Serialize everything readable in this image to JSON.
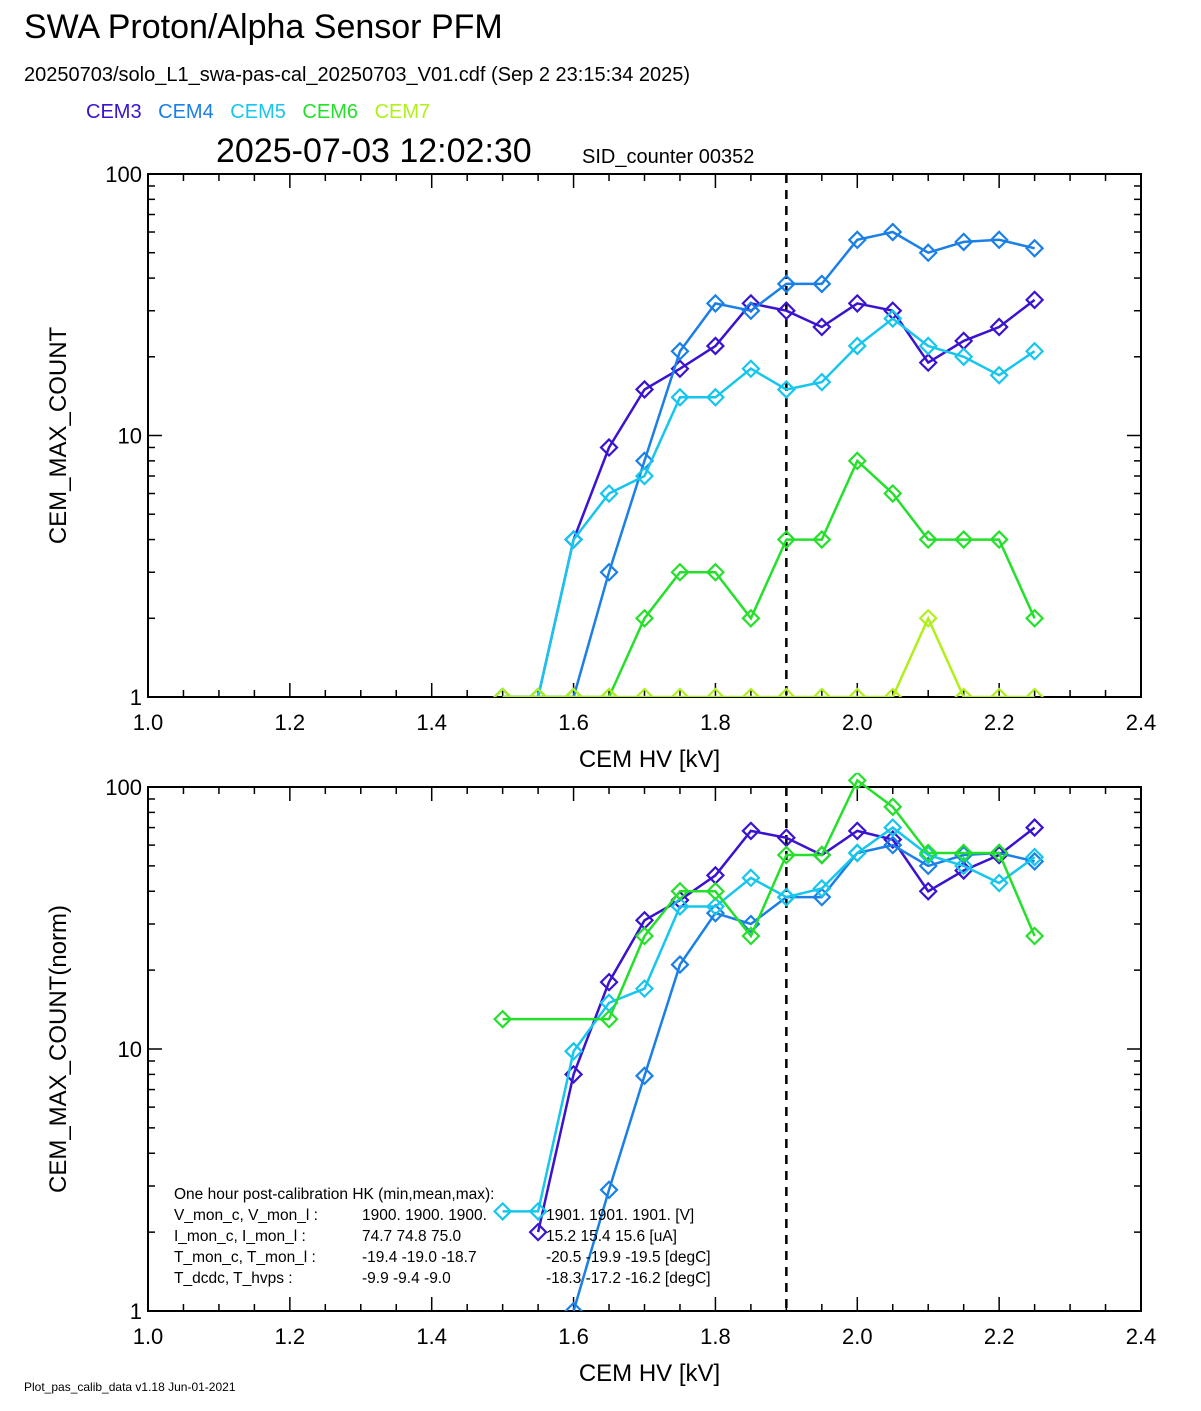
{
  "header": {
    "title": "SWA Proton/Alpha Sensor PFM",
    "subtitle": "20250703/solo_L1_swa-pas-cal_20250703_V01.cdf  (Sep  2 23:15:34 2025)",
    "timestamp": "2025-07-03 12:02:30",
    "sid_counter": "SID_counter 00352"
  },
  "legend": [
    {
      "name": "CEM3",
      "color": "#3a12cf"
    },
    {
      "name": "CEM4",
      "color": "#1a7fe6"
    },
    {
      "name": "CEM5",
      "color": "#17c6ec"
    },
    {
      "name": "CEM6",
      "color": "#25e02a"
    },
    {
      "name": "CEM7",
      "color": "#b0f01a"
    }
  ],
  "footer": "Plot_pas_calib_data v1.18 Jun-01-2021",
  "hk": {
    "title": "One hour post-calibration HK (min,mean,max):",
    "rows": [
      {
        "label": "V_mon_c, V_mon_l :",
        "v1": "1900.  1900.  1900.",
        "v2": "1901.  1901.  1901. [V]"
      },
      {
        "label": "I_mon_c,  I_mon_l :",
        "v1": "74.7   74.8   75.0",
        "v2": "15.2   15.4   15.6  [uA]"
      },
      {
        "label": "T_mon_c, T_mon_l :",
        "v1": "-19.4  -19.0  -18.7",
        "v2": "-20.5  -19.9  -19.5  [degC]"
      },
      {
        "label": "T_dcdc,    T_hvps :",
        "v1": "-9.9   -9.4   -9.0",
        "v2": "-18.3  -17.2  -16.2  [degC]"
      }
    ]
  },
  "chart_data": [
    {
      "type": "line",
      "xlabel": "CEM HV [kV]",
      "ylabel": "CEM_MAX_COUNT",
      "xlim": [
        1.0,
        2.4
      ],
      "ylim": [
        1,
        100
      ],
      "yscale": "log",
      "xticks": [
        "1.0",
        "1.2",
        "1.4",
        "1.6",
        "1.8",
        "2.0",
        "2.2",
        "2.4"
      ],
      "yticks": [
        "1",
        "10",
        "100"
      ],
      "vline": 1.9,
      "series": [
        {
          "name": "CEM3",
          "color": "#3a12cf",
          "x": [
            1.5,
            1.55,
            1.6,
            1.65,
            1.7,
            1.75,
            1.8,
            1.85,
            1.9,
            1.95,
            2.0,
            2.05,
            2.1,
            2.15,
            2.2,
            2.25
          ],
          "y": [
            1,
            1,
            4,
            9,
            15,
            18,
            22,
            32,
            30,
            26,
            32,
            30,
            19,
            23,
            26,
            33
          ]
        },
        {
          "name": "CEM4",
          "color": "#1a7fe6",
          "x": [
            1.5,
            1.55,
            1.6,
            1.65,
            1.7,
            1.75,
            1.8,
            1.85,
            1.9,
            1.95,
            2.0,
            2.05,
            2.1,
            2.15,
            2.2,
            2.25
          ],
          "y": [
            1,
            1,
            1,
            3,
            8,
            21,
            32,
            30,
            38,
            38,
            56,
            60,
            50,
            55,
            56,
            52
          ]
        },
        {
          "name": "CEM5",
          "color": "#17c6ec",
          "x": [
            1.5,
            1.55,
            1.6,
            1.65,
            1.7,
            1.75,
            1.8,
            1.85,
            1.9,
            1.95,
            2.0,
            2.05,
            2.1,
            2.15,
            2.2,
            2.25
          ],
          "y": [
            1,
            1,
            4,
            6,
            7,
            14,
            14,
            18,
            15,
            16,
            22,
            28,
            22,
            20,
            17,
            21
          ]
        },
        {
          "name": "CEM6",
          "color": "#25e02a",
          "x": [
            1.5,
            1.55,
            1.6,
            1.65,
            1.7,
            1.75,
            1.8,
            1.85,
            1.9,
            1.95,
            2.0,
            2.05,
            2.1,
            2.15,
            2.2,
            2.25
          ],
          "y": [
            1,
            1,
            1,
            1,
            2,
            3,
            3,
            2,
            4,
            4,
            8,
            6,
            4,
            4,
            4,
            2
          ]
        },
        {
          "name": "CEM7",
          "color": "#b0f01a",
          "x": [
            1.5,
            1.55,
            1.6,
            1.65,
            1.7,
            1.75,
            1.8,
            1.85,
            1.9,
            1.95,
            2.0,
            2.05,
            2.1,
            2.15,
            2.2,
            2.25
          ],
          "y": [
            1,
            1,
            1,
            1,
            1,
            1,
            1,
            1,
            1,
            1,
            1,
            1,
            2,
            1,
            1,
            1
          ]
        }
      ]
    },
    {
      "type": "line",
      "xlabel": "CEM HV [kV]",
      "ylabel": "CEM_MAX_COUNT(norm)",
      "xlim": [
        1.0,
        2.4
      ],
      "ylim": [
        1,
        100
      ],
      "yscale": "log",
      "xticks": [
        "1.0",
        "1.2",
        "1.4",
        "1.6",
        "1.8",
        "2.0",
        "2.2",
        "2.4"
      ],
      "yticks": [
        "1",
        "10",
        "100"
      ],
      "vline": 1.9,
      "series": [
        {
          "name": "CEM3",
          "color": "#3a12cf",
          "x": [
            1.55,
            1.6,
            1.65,
            1.7,
            1.75,
            1.8,
            1.85,
            1.9,
            1.95,
            2.0,
            2.05,
            2.1,
            2.15,
            2.2,
            2.25
          ],
          "y": [
            2.0,
            8.0,
            18,
            31,
            37,
            46,
            68,
            64,
            55,
            68,
            63,
            40,
            48,
            55,
            70
          ]
        },
        {
          "name": "CEM4",
          "color": "#1a7fe6",
          "x": [
            1.6,
            1.65,
            1.7,
            1.75,
            1.8,
            1.85,
            1.9,
            1.95,
            2.0,
            2.05,
            2.1,
            2.15,
            2.2,
            2.25
          ],
          "y": [
            1.0,
            2.9,
            7.9,
            21,
            33,
            30,
            38,
            38,
            56,
            60,
            50,
            55,
            56,
            52
          ]
        },
        {
          "name": "CEM5",
          "color": "#17c6ec",
          "x": [
            1.5,
            1.55,
            1.6,
            1.65,
            1.7,
            1.75,
            1.8,
            1.85,
            1.9,
            1.95,
            2.0,
            2.05,
            2.1,
            2.15,
            2.2,
            2.25
          ],
          "y": [
            2.4,
            2.4,
            9.8,
            15,
            17,
            35,
            35,
            45,
            38,
            41,
            56,
            70,
            55,
            50,
            43,
            54
          ]
        },
        {
          "name": "CEM6",
          "color": "#25e02a",
          "x": [
            1.5,
            1.65,
            1.7,
            1.75,
            1.8,
            1.85,
            1.9,
            1.95,
            2.0,
            2.05,
            2.1,
            2.15,
            2.2,
            2.25
          ],
          "y": [
            13,
            13,
            27,
            40,
            40,
            27,
            55,
            55,
            106,
            84,
            56,
            56,
            56,
            27
          ]
        }
      ]
    }
  ]
}
